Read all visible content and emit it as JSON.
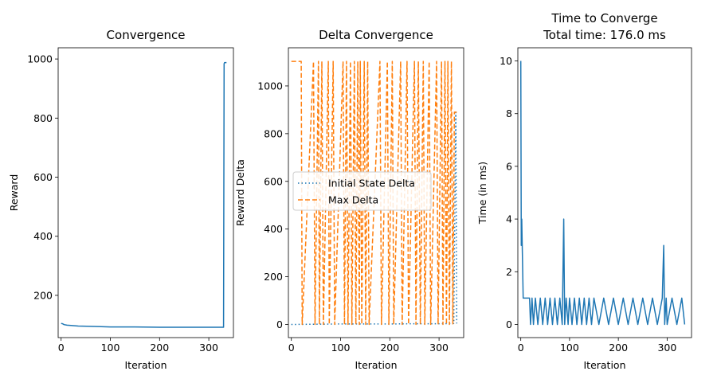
{
  "chart_data": [
    {
      "type": "line",
      "title": "Convergence",
      "xlabel": "Iteration",
      "ylabel": "Reward",
      "xlim": [
        -6,
        350
      ],
      "ylim": [
        57,
        1038
      ],
      "xticks": [
        0,
        100,
        200,
        300
      ],
      "yticks": [
        200,
        400,
        600,
        800,
        1000
      ],
      "grid": false,
      "series": [
        {
          "color": "#1f77b4",
          "style": "solid",
          "x": [
            0,
            3,
            6,
            12,
            20,
            35,
            60,
            100,
            150,
            200,
            250,
            300,
            330,
            331,
            332,
            336
          ],
          "y": [
            105,
            104,
            101,
            99,
            98,
            96,
            95,
            93,
            93,
            92,
            92,
            92,
            92,
            984,
            988,
            988
          ]
        }
      ]
    },
    {
      "type": "line",
      "title": "Delta Convergence",
      "xlabel": "Iteration",
      "ylabel": "Reward Delta",
      "xlim": [
        -6,
        350
      ],
      "ylim": [
        -55,
        1160
      ],
      "xticks": [
        0,
        100,
        200,
        300
      ],
      "yticks": [
        0,
        200,
        400,
        600,
        800,
        1000
      ],
      "grid": false,
      "legend": {
        "position": "center-left",
        "entries": [
          "Initial State Delta",
          "Max Delta"
        ]
      },
      "series": [
        {
          "name": "Initial State Delta",
          "color": "#1f77b4",
          "style": "dotted",
          "x": [
            0,
            50,
            100,
            150,
            200,
            250,
            300,
            330,
            334,
            336
          ],
          "y": [
            0,
            1,
            2,
            2,
            2,
            3,
            3,
            4,
            890,
            4
          ]
        },
        {
          "name": "Max Delta",
          "color": "#ff7f0e",
          "style": "dashed",
          "note": "oscillates between ~0 and ~1100",
          "x": [
            0,
            20,
            22,
            45,
            48,
            55,
            57,
            62,
            65,
            75,
            77,
            85,
            88,
            105,
            108,
            112,
            115,
            120,
            123,
            128,
            131,
            135,
            138,
            140,
            143,
            148,
            151,
            155,
            158,
            180,
            183,
            195,
            198,
            205,
            208,
            222,
            225,
            235,
            238,
            250,
            253,
            258,
            262,
            268,
            271,
            280,
            283,
            295,
            298,
            305,
            308,
            312,
            315,
            318,
            321,
            325,
            328,
            331,
            336
          ],
          "y": [
            1103,
            1103,
            0,
            1103,
            0,
            1103,
            0,
            1103,
            0,
            1103,
            0,
            1103,
            0,
            1103,
            0,
            1103,
            0,
            1103,
            0,
            1103,
            0,
            1103,
            0,
            1103,
            0,
            1103,
            0,
            1103,
            0,
            1103,
            0,
            1103,
            0,
            1103,
            0,
            1103,
            0,
            1103,
            0,
            1103,
            0,
            1103,
            0,
            1103,
            0,
            1103,
            0,
            1103,
            0,
            1103,
            0,
            1103,
            0,
            1103,
            0,
            1103,
            0,
            890,
            890
          ]
        }
      ]
    },
    {
      "type": "line",
      "title": "Time to Converge",
      "subtitle": "Total time: 176.0 ms",
      "xlabel": "Iteration",
      "ylabel": "Time (in ms)",
      "xlim": [
        -6,
        350
      ],
      "ylim": [
        -0.5,
        10.5
      ],
      "xticks": [
        0,
        100,
        200,
        300
      ],
      "yticks": [
        0,
        2,
        4,
        6,
        8,
        10
      ],
      "grid": false,
      "series": [
        {
          "color": "#1f77b4",
          "style": "solid",
          "note": "mostly alternating between 0 and 1 ms",
          "x": [
            0,
            1,
            2,
            3,
            4,
            5,
            6,
            8,
            12,
            15,
            18,
            20,
            23,
            26,
            30,
            35,
            40,
            45,
            50,
            55,
            60,
            65,
            70,
            75,
            80,
            85,
            88,
            90,
            93,
            97,
            100,
            105,
            110,
            115,
            120,
            125,
            130,
            135,
            140,
            145,
            150,
            160,
            170,
            180,
            190,
            200,
            210,
            220,
            230,
            240,
            250,
            260,
            270,
            280,
            290,
            293,
            295,
            298,
            300,
            310,
            320,
            330,
            336
          ],
          "y": [
            10,
            3,
            4,
            3,
            2,
            1,
            1,
            1,
            1,
            1,
            1,
            0,
            1,
            0,
            1,
            0,
            1,
            0,
            1,
            0,
            1,
            0,
            1,
            0,
            1,
            0,
            4,
            0,
            1,
            0,
            1,
            0,
            1,
            0,
            1,
            0,
            1,
            0,
            1,
            0,
            1,
            0,
            1,
            0,
            1,
            0,
            1,
            0,
            1,
            0,
            1,
            0,
            1,
            0,
            1,
            3,
            0,
            1,
            0,
            1,
            0,
            1,
            0
          ]
        }
      ]
    }
  ]
}
